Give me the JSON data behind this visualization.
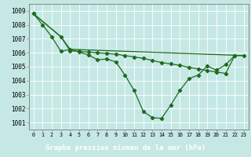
{
  "background_color": "#c5e8e5",
  "grid_color": "#aad4d0",
  "line_color": "#1e6b1e",
  "xlabel": "Graphe pression niveau de la mer (hPa)",
  "xlim": [
    -0.5,
    23.5
  ],
  "ylim": [
    1000.5,
    1009.5
  ],
  "yticks": [
    1001,
    1002,
    1003,
    1004,
    1005,
    1006,
    1007,
    1008,
    1009
  ],
  "xticks": [
    0,
    1,
    2,
    3,
    4,
    5,
    6,
    7,
    8,
    9,
    10,
    11,
    12,
    13,
    14,
    15,
    16,
    17,
    18,
    19,
    20,
    21,
    22,
    23
  ],
  "series1_x": [
    0,
    1,
    2,
    3,
    4,
    5,
    6,
    7,
    8,
    9,
    10,
    11,
    12,
    13,
    14,
    15,
    16,
    17,
    18,
    19,
    20,
    21,
    22
  ],
  "series1_y": [
    1008.8,
    1008.0,
    1007.15,
    1006.1,
    1006.25,
    1006.05,
    1005.85,
    1005.5,
    1005.55,
    1005.35,
    1004.4,
    1003.3,
    1001.8,
    1001.35,
    1001.3,
    1002.25,
    1003.3,
    1004.15,
    1004.4,
    1005.05,
    1004.75,
    1005.15,
    1005.8
  ],
  "series2_x": [
    0,
    3,
    4,
    5,
    6,
    7,
    8,
    9,
    10,
    11,
    12,
    13,
    14,
    15,
    16,
    17,
    18,
    19,
    20,
    21,
    22,
    23
  ],
  "series2_y": [
    1008.8,
    1007.15,
    1006.15,
    1006.1,
    1006.05,
    1006.0,
    1005.95,
    1005.9,
    1005.8,
    1005.7,
    1005.6,
    1005.45,
    1005.3,
    1005.2,
    1005.1,
    1004.95,
    1004.85,
    1004.72,
    1004.62,
    1004.52,
    1005.8,
    1005.8
  ],
  "series3_x": [
    0,
    3,
    4,
    23
  ],
  "series3_y": [
    1008.8,
    1007.15,
    1006.25,
    1005.8
  ]
}
